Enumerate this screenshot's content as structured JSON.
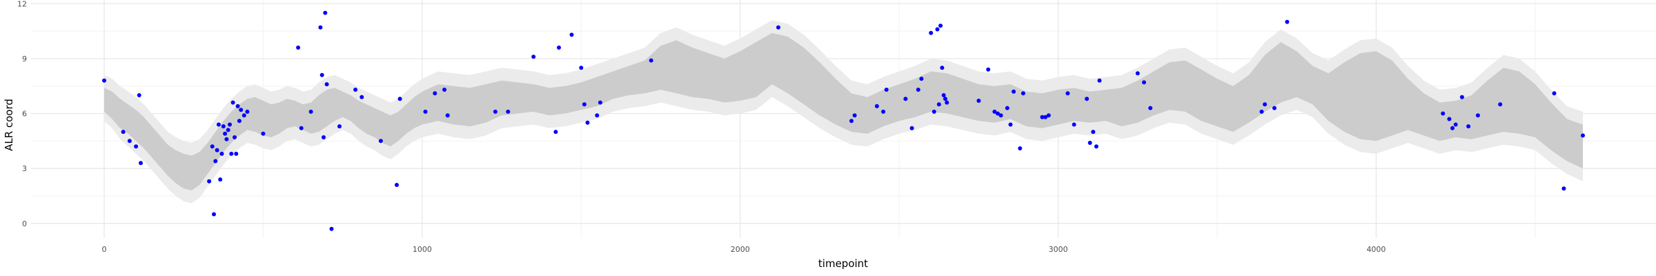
{
  "chart_data": {
    "type": "line",
    "title": "",
    "xlabel": "timepoint",
    "ylabel": "ALR coord",
    "xlim": [
      -230,
      4880
    ],
    "ylim": [
      -0.8,
      12.2
    ],
    "x_ticks": [
      0,
      1000,
      2000,
      3000,
      4000
    ],
    "y_ticks": [
      0,
      3,
      6,
      9,
      12
    ],
    "x_tick_labels": [
      "0",
      "1000",
      "2000",
      "3000",
      "4000"
    ],
    "y_tick_labels": [
      "0",
      "3",
      "6",
      "9",
      "12"
    ],
    "grid": true,
    "legend": "none",
    "colors": {
      "outer_band": "#ebebeb",
      "inner_band": "#cccccc",
      "points": "#0000ff",
      "grid_major": "#e6e6e6",
      "grid_minor": "#f2f2f2"
    },
    "bands": {
      "x": [
        0,
        25,
        50,
        75,
        100,
        125,
        150,
        175,
        200,
        225,
        250,
        275,
        300,
        325,
        350,
        375,
        400,
        425,
        450,
        475,
        500,
        525,
        550,
        575,
        600,
        625,
        650,
        675,
        700,
        725,
        750,
        775,
        800,
        825,
        850,
        875,
        900,
        925,
        950,
        975,
        1000,
        1050,
        1100,
        1150,
        1200,
        1250,
        1300,
        1350,
        1400,
        1450,
        1500,
        1550,
        1600,
        1650,
        1700,
        1750,
        1800,
        1850,
        1900,
        1950,
        2000,
        2050,
        2100,
        2150,
        2200,
        2250,
        2300,
        2350,
        2400,
        2450,
        2500,
        2550,
        2600,
        2650,
        2700,
        2750,
        2800,
        2850,
        2900,
        2950,
        3000,
        3050,
        3100,
        3150,
        3200,
        3250,
        3300,
        3350,
        3400,
        3450,
        3500,
        3550,
        3600,
        3650,
        3700,
        3750,
        3800,
        3850,
        3900,
        3950,
        4000,
        4050,
        4100,
        4150,
        4200,
        4250,
        4300,
        4350,
        4400,
        4450,
        4500,
        4550,
        4600,
        4650
      ],
      "inner_lower": [
        6.1,
        5.7,
        5.2,
        4.9,
        4.5,
        4.1,
        3.6,
        3.1,
        2.6,
        2.2,
        1.9,
        1.8,
        2.1,
        2.7,
        3.3,
        3.9,
        4.4,
        4.8,
        5.1,
        5.0,
        4.8,
        4.7,
        4.9,
        5.2,
        5.3,
        5.1,
        4.9,
        5.0,
        5.3,
        5.6,
        5.8,
        5.6,
        5.2,
        4.9,
        4.7,
        4.4,
        4.2,
        4.5,
        4.9,
        5.2,
        5.4,
        5.6,
        5.4,
        5.3,
        5.5,
        5.9,
        6.0,
        6.1,
        5.9,
        6.0,
        6.2,
        6.4,
        6.8,
        7.0,
        7.1,
        7.3,
        7.1,
        6.9,
        6.8,
        6.6,
        6.7,
        6.9,
        7.6,
        7.1,
        6.5,
        5.9,
        5.4,
        5.0,
        4.9,
        5.3,
        5.6,
        5.8,
        6.1,
        6.0,
        5.8,
        5.6,
        5.5,
        5.7,
        5.3,
        5.2,
        5.4,
        5.6,
        5.5,
        5.6,
        5.3,
        5.5,
        5.9,
        6.2,
        6.1,
        5.6,
        5.3,
        5.0,
        5.5,
        6.1,
        6.6,
        6.9,
        6.5,
        5.6,
        5.0,
        4.6,
        4.5,
        4.8,
        5.1,
        4.8,
        4.5,
        4.7,
        4.6,
        4.8,
        5.0,
        4.9,
        4.7,
        4.0,
        3.4,
        3.0
      ],
      "inner_upper": [
        7.4,
        7.2,
        6.8,
        6.5,
        6.2,
        5.8,
        5.3,
        4.8,
        4.3,
        4.0,
        3.8,
        3.7,
        3.9,
        4.4,
        5.0,
        5.6,
        6.1,
        6.5,
        6.8,
        6.9,
        6.7,
        6.5,
        6.6,
        6.8,
        6.7,
        6.5,
        6.6,
        7.0,
        7.3,
        7.4,
        7.2,
        7.0,
        6.7,
        6.5,
        6.3,
        6.1,
        5.9,
        6.1,
        6.5,
        6.9,
        7.2,
        7.6,
        7.5,
        7.4,
        7.6,
        7.8,
        7.7,
        7.6,
        7.4,
        7.5,
        7.7,
        8.0,
        8.3,
        8.6,
        8.9,
        9.7,
        10.0,
        9.6,
        9.3,
        9.0,
        9.4,
        9.9,
        10.4,
        10.2,
        9.6,
        8.8,
        7.9,
        7.1,
        6.9,
        7.3,
        7.6,
        7.9,
        8.3,
        8.2,
        7.9,
        7.6,
        7.5,
        7.6,
        7.2,
        7.1,
        7.3,
        7.4,
        7.2,
        7.3,
        7.4,
        7.8,
        8.3,
        8.8,
        8.9,
        8.4,
        7.9,
        7.5,
        8.1,
        9.2,
        9.9,
        9.4,
        8.6,
        8.2,
        8.8,
        9.3,
        9.4,
        8.9,
        7.9,
        7.1,
        6.6,
        6.7,
        7.0,
        7.8,
        8.5,
        8.3,
        7.6,
        6.6,
        5.7,
        5.4
      ],
      "outer_lower": [
        5.6,
        5.2,
        4.6,
        4.2,
        3.8,
        3.4,
        2.9,
        2.4,
        1.9,
        1.5,
        1.2,
        1.1,
        1.4,
        2.0,
        2.6,
        3.2,
        3.7,
        4.1,
        4.4,
        4.3,
        4.1,
        4.0,
        4.2,
        4.5,
        4.6,
        4.4,
        4.2,
        4.3,
        4.6,
        4.9,
        5.1,
        4.9,
        4.5,
        4.2,
        4.0,
        3.7,
        3.5,
        3.8,
        4.2,
        4.5,
        4.7,
        4.9,
        4.7,
        4.6,
        4.8,
        5.2,
        5.3,
        5.4,
        5.2,
        5.3,
        5.5,
        5.7,
        6.1,
        6.3,
        6.4,
        6.6,
        6.4,
        6.2,
        6.1,
        5.9,
        6.0,
        6.2,
        6.9,
        6.4,
        5.8,
        5.2,
        4.7,
        4.3,
        4.2,
        4.6,
        4.9,
        5.1,
        5.4,
        5.3,
        5.1,
        4.9,
        4.8,
        5.0,
        4.6,
        4.5,
        4.7,
        4.9,
        4.8,
        4.9,
        4.6,
        4.8,
        5.2,
        5.5,
        5.4,
        4.9,
        4.6,
        4.3,
        4.8,
        5.4,
        5.9,
        6.2,
        5.8,
        4.9,
        4.3,
        3.9,
        3.8,
        4.1,
        4.4,
        4.1,
        3.8,
        4.0,
        3.9,
        4.1,
        4.3,
        4.2,
        4.0,
        3.3,
        2.7,
        2.3
      ],
      "outer_upper": [
        8.1,
        7.9,
        7.5,
        7.2,
        6.9,
        6.5,
        6.0,
        5.5,
        5.0,
        4.7,
        4.5,
        4.4,
        4.6,
        5.1,
        5.7,
        6.3,
        6.8,
        7.2,
        7.5,
        7.6,
        7.4,
        7.2,
        7.3,
        7.5,
        7.4,
        7.2,
        7.3,
        7.7,
        8.0,
        8.1,
        7.9,
        7.7,
        7.4,
        7.2,
        7.0,
        6.8,
        6.6,
        6.8,
        7.2,
        7.6,
        7.9,
        8.3,
        8.2,
        8.1,
        8.3,
        8.5,
        8.4,
        8.3,
        8.1,
        8.2,
        8.4,
        8.7,
        9.0,
        9.3,
        9.6,
        10.4,
        10.7,
        10.3,
        10.0,
        9.7,
        10.1,
        10.6,
        11.1,
        10.9,
        10.3,
        9.5,
        8.6,
        7.8,
        7.6,
        8.0,
        8.3,
        8.6,
        9.0,
        8.9,
        8.6,
        8.3,
        8.2,
        8.3,
        7.9,
        7.8,
        8.0,
        8.1,
        7.9,
        8.0,
        8.1,
        8.5,
        9.0,
        9.5,
        9.6,
        9.1,
        8.6,
        8.2,
        8.8,
        9.9,
        10.6,
        10.1,
        9.3,
        8.9,
        9.5,
        10.0,
        10.1,
        9.6,
        8.6,
        7.8,
        7.3,
        7.4,
        7.7,
        8.5,
        9.2,
        9.0,
        8.3,
        7.3,
        6.4,
        6.1
      ]
    },
    "points": {
      "x": [
        0,
        60,
        80,
        100,
        110,
        115,
        330,
        340,
        345,
        350,
        355,
        360,
        365,
        370,
        375,
        380,
        385,
        390,
        395,
        400,
        405,
        410,
        415,
        420,
        425,
        430,
        440,
        450,
        500,
        610,
        620,
        650,
        680,
        685,
        690,
        695,
        700,
        715,
        740,
        790,
        810,
        870,
        920,
        930,
        1010,
        1040,
        1070,
        1080,
        1230,
        1270,
        1350,
        1420,
        1430,
        1470,
        1500,
        1510,
        1520,
        1550,
        1560,
        1720,
        2120,
        2350,
        2360,
        2430,
        2450,
        2460,
        2520,
        2540,
        2560,
        2570,
        2600,
        2610,
        2620,
        2625,
        2630,
        2635,
        2640,
        2645,
        2650,
        2750,
        2780,
        2800,
        2810,
        2820,
        2840,
        2850,
        2860,
        2880,
        2890,
        2950,
        2960,
        2970,
        3030,
        3050,
        3090,
        3100,
        3110,
        3120,
        3130,
        3250,
        3270,
        3290,
        3640,
        3650,
        3680,
        3720,
        4210,
        4230,
        4240,
        4250,
        4270,
        4290,
        4320,
        4390,
        4560,
        4590,
        4650
      ],
      "y": [
        7.8,
        5.0,
        4.5,
        4.2,
        7.0,
        3.3,
        2.3,
        4.2,
        0.5,
        3.4,
        4.0,
        5.4,
        2.4,
        3.8,
        5.3,
        4.9,
        4.6,
        5.1,
        5.4,
        3.8,
        6.6,
        4.7,
        3.8,
        6.4,
        5.6,
        6.2,
        5.9,
        6.1,
        4.9,
        9.6,
        5.2,
        6.1,
        10.7,
        8.1,
        4.7,
        11.5,
        7.6,
        -0.3,
        5.3,
        7.3,
        6.9,
        4.5,
        2.1,
        6.8,
        6.1,
        7.1,
        7.3,
        5.9,
        6.1,
        6.1,
        9.1,
        5.0,
        9.6,
        10.3,
        8.5,
        6.5,
        5.5,
        5.9,
        6.6,
        8.9,
        10.7,
        5.6,
        5.9,
        6.4,
        6.1,
        7.3,
        6.8,
        5.2,
        7.3,
        7.9,
        10.4,
        6.1,
        10.6,
        6.5,
        10.8,
        8.5,
        7.0,
        6.8,
        6.6,
        6.7,
        8.4,
        6.1,
        6.0,
        5.9,
        6.3,
        5.4,
        7.2,
        4.1,
        7.1,
        5.8,
        5.8,
        5.9,
        7.1,
        5.4,
        6.8,
        4.4,
        5.0,
        4.2,
        7.8,
        8.2,
        7.7,
        6.3,
        6.1,
        6.5,
        6.3,
        11.0,
        6.0,
        5.7,
        5.2,
        5.4,
        6.9,
        5.3,
        5.9,
        6.5,
        7.1,
        1.9,
        4.8
      ]
    }
  }
}
